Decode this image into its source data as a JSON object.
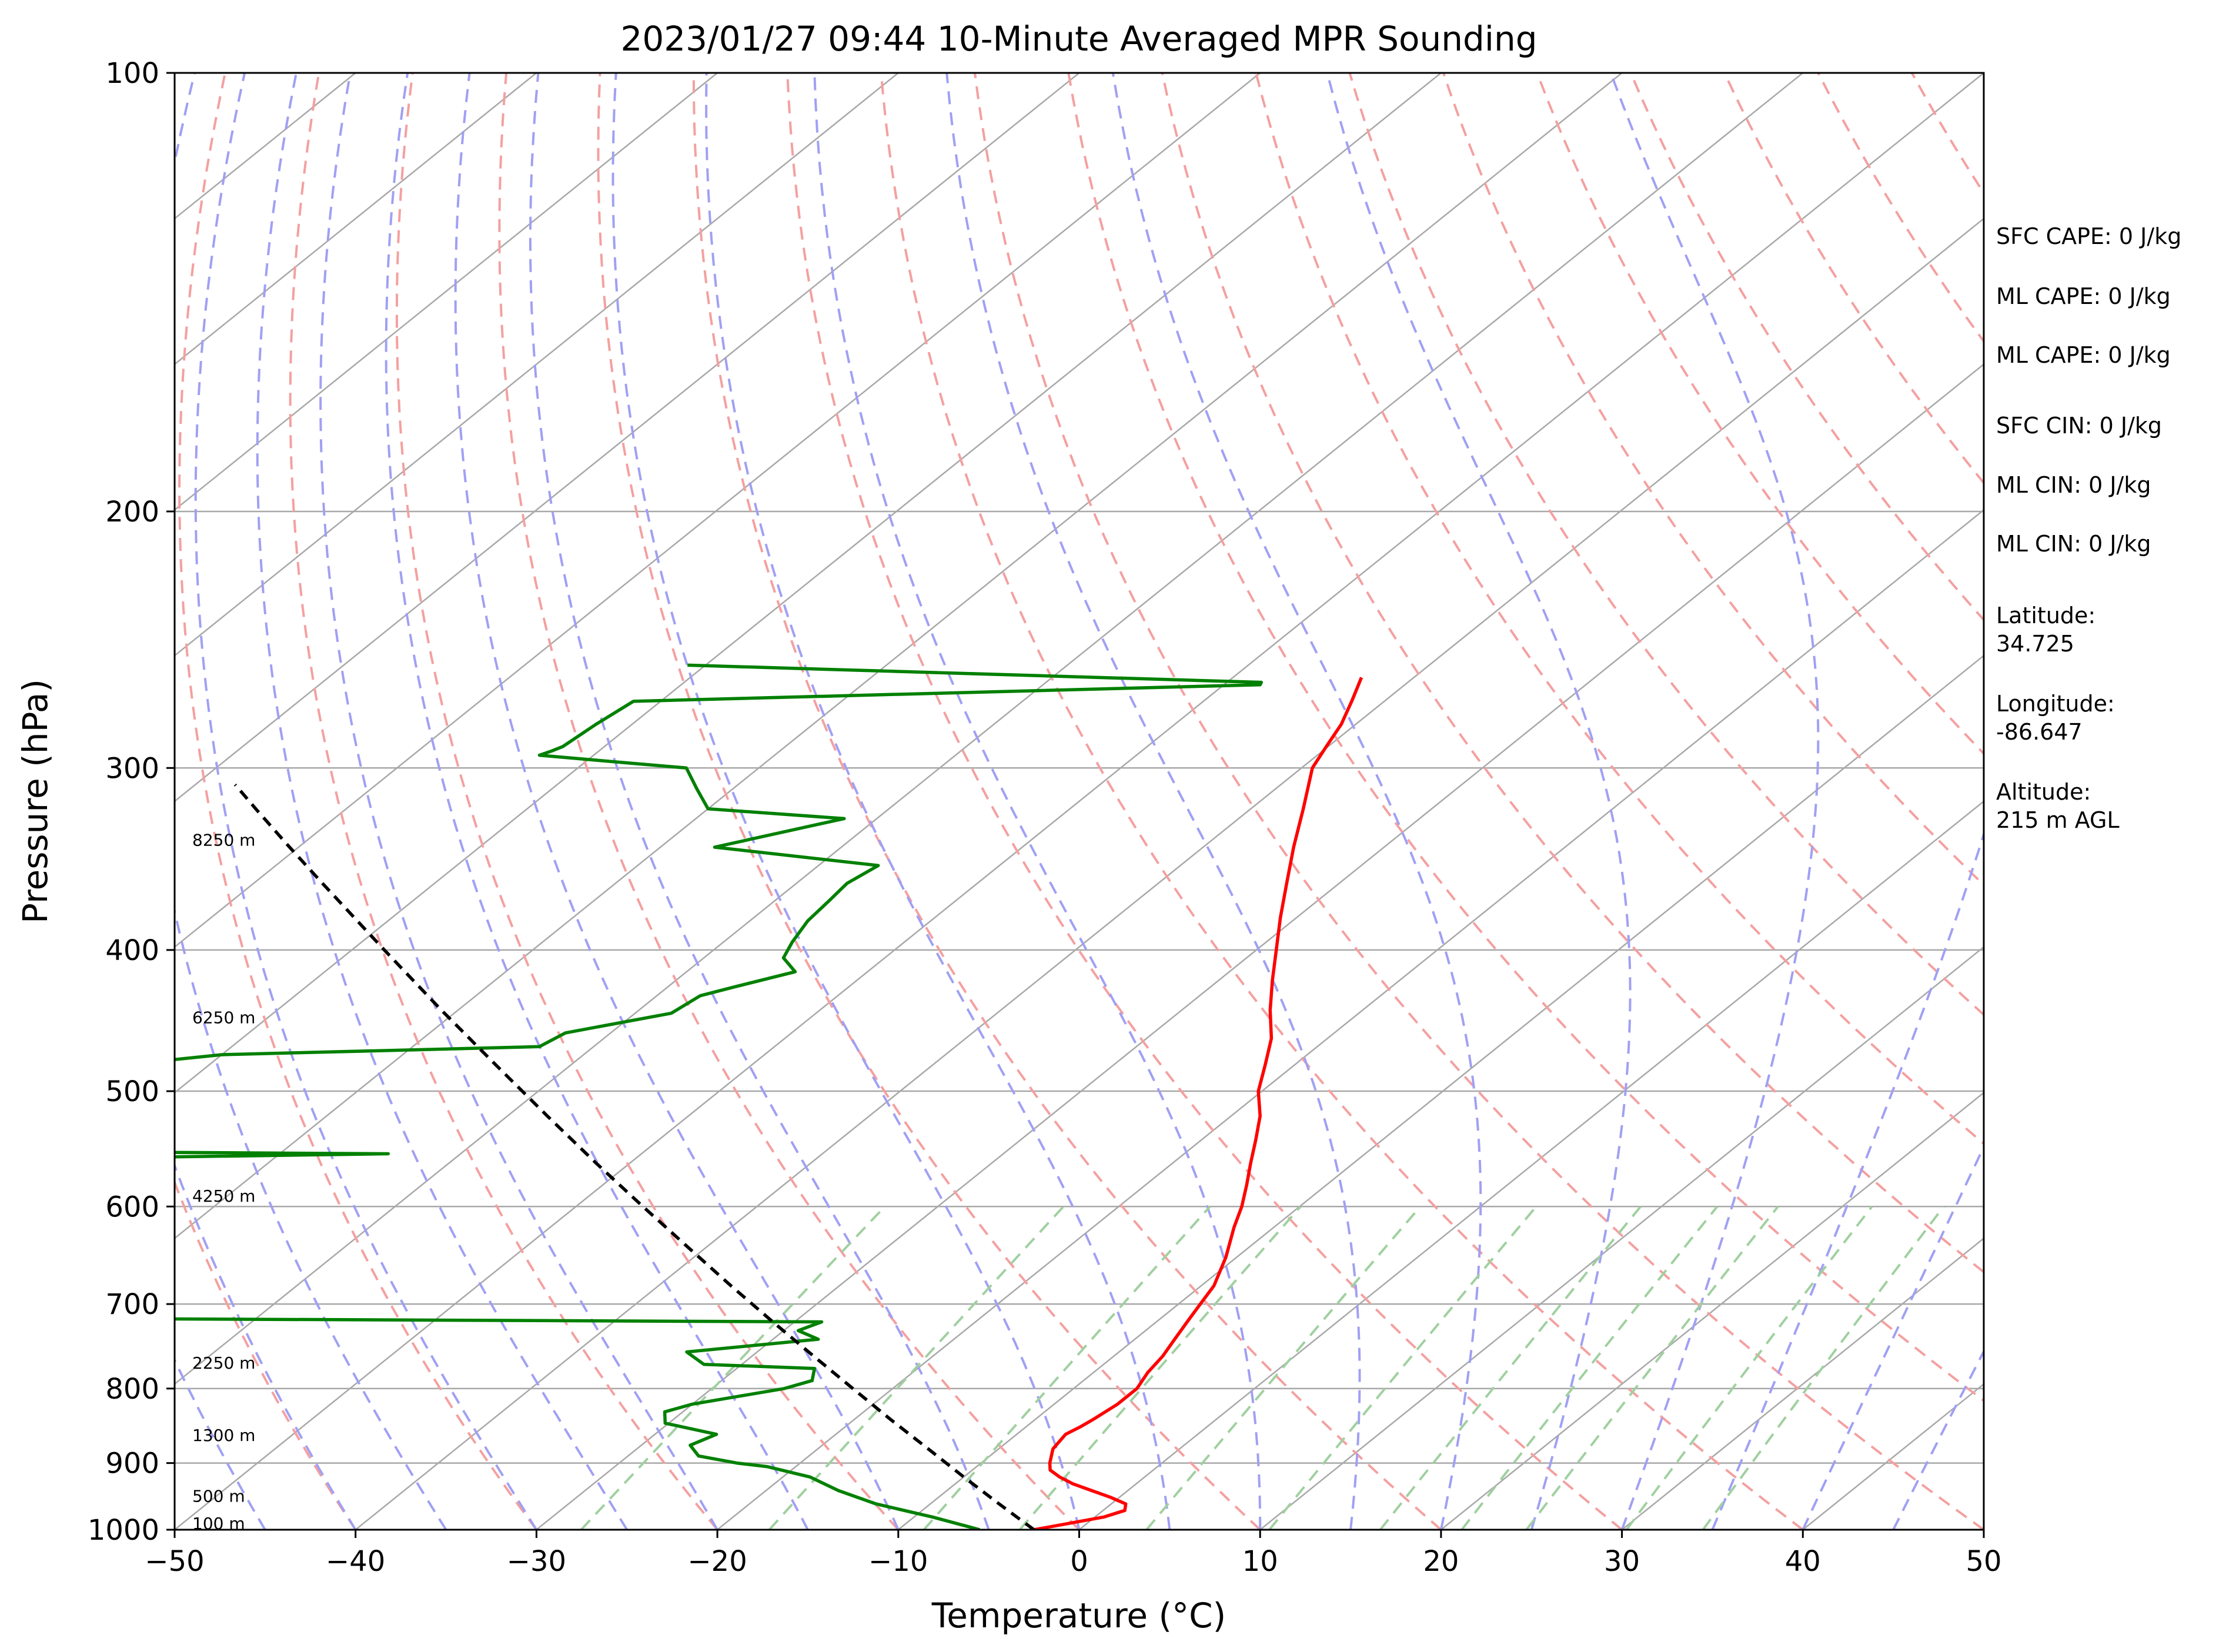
{
  "chart_data": {
    "type": "line",
    "title": "2023/01/27 09:44 10-Minute Averaged MPR Sounding",
    "xlabel": "Temperature (°C)",
    "ylabel": "Pressure (hPa)",
    "xlim": [
      -50,
      50
    ],
    "ylim": [
      1000,
      100
    ],
    "y_scale": "log",
    "x_ticks": [
      -50,
      -40,
      -30,
      -20,
      -10,
      0,
      10,
      20,
      30,
      40,
      50
    ],
    "x_tick_labels": [
      "−50",
      "−40",
      "−30",
      "−20",
      "−10",
      "0",
      "10",
      "20",
      "30",
      "40",
      "50"
    ],
    "y_ticks": [
      1000,
      900,
      800,
      700,
      600,
      500,
      400,
      300,
      200,
      100
    ],
    "y_tick_labels": [
      "1000",
      "900",
      "800",
      "700",
      "600",
      "500",
      "400",
      "300",
      "200",
      "100"
    ],
    "grid": true,
    "colors": {
      "temperature": "#ff0000",
      "dewpoint": "#008000",
      "parcel": "#000000",
      "dry_adiabat": "#f4a0a0",
      "moist_adiabat": "#a0a0f4",
      "mixing_ratio": "#a0d0a0",
      "isotherm": "#a8a8a8"
    },
    "series": [
      {
        "key": "temperature",
        "pressure": [
          1000,
          990,
          980,
          970,
          960,
          950,
          940,
          930,
          920,
          910,
          900,
          880,
          860,
          850,
          840,
          820,
          800,
          780,
          760,
          740,
          720,
          700,
          680,
          650,
          620,
          600,
          580,
          560,
          540,
          520,
          500,
          480,
          460,
          440,
          420,
          400,
          380,
          360,
          340,
          320,
          300,
          290,
          280,
          270,
          260
        ],
        "values": [
          -2.5,
          -1.0,
          0.5,
          1.2,
          0.8,
          -0.5,
          -2.0,
          -3.5,
          -4.7,
          -5.7,
          -6.2,
          -7.0,
          -7.3,
          -7.0,
          -6.8,
          -6.5,
          -6.5,
          -7.0,
          -7.3,
          -7.8,
          -8.3,
          -8.8,
          -9.3,
          -10.6,
          -12.2,
          -13.2,
          -14.4,
          -15.7,
          -17.0,
          -18.4,
          -20.2,
          -21.6,
          -23.1,
          -25.1,
          -27.0,
          -28.9,
          -30.9,
          -32.9,
          -35.0,
          -37.1,
          -39.4,
          -40.1,
          -40.8,
          -41.8,
          -42.9
        ]
      },
      {
        "key": "dewpoint",
        "pressure": [
          1000,
          980,
          960,
          940,
          920,
          905,
          900,
          890,
          875,
          860,
          850,
          845,
          830,
          820,
          810,
          800,
          790,
          775,
          770,
          755,
          740,
          730,
          720,
          716,
          714,
          680,
          660,
          620,
          578,
          577,
          568,
          567,
          560,
          552,
          550,
          545,
          540,
          520,
          515,
          500,
          480,
          476,
          472,
          466,
          456,
          442,
          430,
          424,
          414,
          405,
          395,
          382,
          370,
          360,
          350,
          340,
          325,
          320,
          310,
          300,
          298,
          296,
          294,
          292,
          290,
          280,
          270,
          263,
          262,
          255
        ],
        "values": [
          -5.5,
          -9,
          -13,
          -16,
          -18.5,
          -21.6,
          -23.5,
          -26.1,
          -27.3,
          -26.6,
          -29.0,
          -30.2,
          -31.0,
          -30.0,
          -28.0,
          -26.0,
          -25.0,
          -25.7,
          -32.1,
          -33.9,
          -27.5,
          -29.2,
          -28.5,
          -71.4,
          -78,
          -82,
          -86,
          -90,
          -89.0,
          -85,
          -90,
          -95,
          -98,
          -64.0,
          -85,
          -92,
          -102,
          -89.0,
          -106,
          -88.7,
          -110,
          -82.5,
          -80,
          -63.0,
          -62.5,
          -58.0,
          -57.6,
          -56.3,
          -54.0,
          -55.6,
          -56.2,
          -56.8,
          -57.0,
          -57.2,
          -56.7,
          -67.0,
          -61.8,
          -70.0,
          -72,
          -74,
          -77,
          -80,
          -83,
          -82.6,
          -82.3,
          -82.0,
          -81.5,
          -48.0,
          -48.1,
          -81.0
        ]
      },
      {
        "key": "parcel",
        "pressure": [
          1000,
          960,
          920,
          880,
          840,
          800,
          760,
          720,
          680,
          640,
          600,
          560,
          520,
          480,
          440,
          400,
          360,
          340,
          320,
          308
        ],
        "values": [
          -2.5,
          -6.2,
          -10.0,
          -13.9,
          -18.0,
          -22.2,
          -26.6,
          -31.2,
          -36.0,
          -41.0,
          -46.3,
          -51.9,
          -57.8,
          -64.1,
          -70.9,
          -78.2,
          -86.2,
          -90.5,
          -95.0,
          -97.8
        ]
      }
    ],
    "height_labels": [
      {
        "text": "100 m",
        "pressure": 990
      },
      {
        "text": "500 m",
        "pressure": 948
      },
      {
        "text": "1300 m",
        "pressure": 861
      },
      {
        "text": "2250 m",
        "pressure": 768
      },
      {
        "text": "4250 m",
        "pressure": 590
      },
      {
        "text": "6250 m",
        "pressure": 445
      },
      {
        "text": "8250 m",
        "pressure": 336
      }
    ]
  },
  "sidebar": {
    "sfc_cape": "SFC CAPE: 0 J/kg",
    "ml_cape_1": "ML CAPE: 0 J/kg",
    "ml_cape_2": "ML CAPE: 0 J/kg",
    "sfc_cin": "SFC CIN: 0 J/kg",
    "ml_cin_1": "ML CIN: 0 J/kg",
    "ml_cin_2": "ML CIN: 0 J/kg",
    "latitude_label": "Latitude:",
    "latitude_value": "34.725",
    "longitude_label": "Longitude:",
    "longitude_value": "-86.647",
    "altitude_label": "Altitude:",
    "altitude_value": "215 m AGL"
  }
}
